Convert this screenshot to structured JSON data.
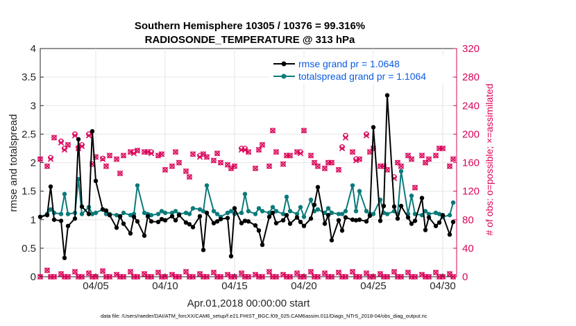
{
  "chart_data": {
    "type": "line",
    "title_line1": "Southern Hemisphere 10305 / 10376 = 99.316%",
    "title_line2": "RADIOSONDE_TEMPERATURE @ 313 hPa",
    "xlabel": "Apr.01,2018 00:00:00 start",
    "ylabel": "rmse and totalspread",
    "y2label": "# of obs: o=possible; ×=assimilated",
    "footnote": "data file: /Users/raeder/DAI/ATM_forcXX/CAM6_setup/f.e21.FHIST_BGC.f09_025.CAM6assim.011/Diags_NTrS_2018-04/obs_diag_output.nc",
    "x_ticks": [
      "04/05",
      "04/10",
      "04/15",
      "04/20",
      "04/25",
      "04/30"
    ],
    "x_tick_days": [
      5,
      10,
      15,
      20,
      25,
      30
    ],
    "xlim": [
      1,
      31
    ],
    "ylim": [
      0,
      4
    ],
    "y_ticks": [
      "0",
      "0.5",
      "1",
      "1.5",
      "2",
      "2.5",
      "3",
      "3.5",
      "4"
    ],
    "y2lim": [
      0,
      320
    ],
    "y2_ticks": [
      "0",
      "40",
      "80",
      "120",
      "160",
      "200",
      "240",
      "280",
      "320"
    ],
    "legend_position": "top-right",
    "colors": {
      "rmse": "#000000",
      "spread": "#0a7a7a",
      "obs": "#d9065a"
    },
    "x": [
      1.0,
      1.5,
      1.75,
      2.0,
      2.5,
      2.75,
      3.0,
      3.5,
      3.75,
      4.0,
      4.5,
      4.75,
      5.0,
      5.5,
      5.75,
      6.0,
      6.5,
      6.75,
      7.0,
      7.5,
      7.75,
      8.0,
      8.5,
      8.75,
      9.0,
      9.5,
      9.75,
      10.0,
      10.5,
      10.75,
      11.0,
      11.5,
      11.75,
      12.0,
      12.5,
      12.75,
      13.0,
      13.5,
      13.75,
      14.0,
      14.5,
      14.75,
      15.0,
      15.5,
      15.75,
      16.0,
      16.5,
      16.75,
      17.0,
      17.5,
      17.75,
      18.0,
      18.5,
      18.75,
      19.0,
      19.5,
      19.75,
      20.0,
      20.5,
      20.75,
      21.0,
      21.5,
      21.75,
      22.0,
      22.5,
      22.75,
      23.0,
      23.5,
      23.75,
      24.0,
      24.5,
      24.75,
      25.0,
      25.5,
      25.75,
      26.0,
      26.5,
      26.75,
      27.0,
      27.5,
      27.75,
      28.0,
      28.5,
      28.75,
      29.0,
      29.5,
      29.75,
      30.0,
      30.5,
      30.75
    ],
    "series": [
      {
        "name": "rmse grand pr = 1.0648",
        "values": [
          1.05,
          1.08,
          1.58,
          1.0,
          0.98,
          0.33,
          0.89,
          1.02,
          2.41,
          1.23,
          1.1,
          2.55,
          1.68,
          1.18,
          1.16,
          1.08,
          0.86,
          1.06,
          0.93,
          0.76,
          1.05,
          0.97,
          0.72,
          1.06,
          0.97,
          0.96,
          1.01,
          0.99,
          1.06,
          0.99,
          1.08,
          0.95,
          0.92,
          0.87,
          1.06,
          0.47,
          1.12,
          0.94,
          0.97,
          1.01,
          1.03,
          0.36,
          1.2,
          0.94,
          0.98,
          0.97,
          0.9,
          0.81,
          0.56,
          1.05,
          1.12,
          0.94,
          0.99,
          1.08,
          0.93,
          1.04,
          0.96,
          0.89,
          1.02,
          1.26,
          1.57,
          0.93,
          1.08,
          0.64,
          0.99,
          0.81,
          1.04,
          1.0,
          0.99,
          1.0,
          0.97,
          1.07,
          2.62,
          0.98,
          1.24,
          3.18,
          1.23,
          1.02,
          1.24,
          1.04,
          0.93,
          0.98,
          1.38,
          0.82,
          1.04,
          0.89,
          0.95,
          1.08,
          0.74,
          0.96
        ]
      },
      {
        "name": "totalspread grand pr = 1.1064",
        "values": [
          1.05,
          1.1,
          1.18,
          1.12,
          1.1,
          1.45,
          1.1,
          1.12,
          1.71,
          1.1,
          1.22,
          1.1,
          1.12,
          1.18,
          1.1,
          1.1,
          1.08,
          1.05,
          1.12,
          1.08,
          1.1,
          1.6,
          1.12,
          1.1,
          1.08,
          1.1,
          1.15,
          1.12,
          1.12,
          1.15,
          1.1,
          1.12,
          1.1,
          1.2,
          1.18,
          1.15,
          1.6,
          1.15,
          1.1,
          1.05,
          1.12,
          1.15,
          1.1,
          1.12,
          1.45,
          1.15,
          1.1,
          1.2,
          1.15,
          1.12,
          1.22,
          1.15,
          1.1,
          1.4,
          1.15,
          1.1,
          1.22,
          1.05,
          1.35,
          1.15,
          1.18,
          1.12,
          1.2,
          1.12,
          1.1,
          1.1,
          1.15,
          1.6,
          1.15,
          1.5,
          1.15,
          1.1,
          1.1,
          1.35,
          1.12,
          1.1,
          1.15,
          1.1,
          1.85,
          1.1,
          1.42,
          1.1,
          1.08,
          1.15,
          1.1,
          1.12,
          1.1,
          1.05,
          1.08,
          1.3
        ]
      }
    ],
    "obs_possible": [
      165,
      155,
      167,
      195,
      190,
      180,
      185,
      200,
      181,
      185,
      200,
      158,
      168,
      166,
      155,
      170,
      165,
      145,
      170,
      175,
      175,
      177,
      175,
      175,
      175,
      170,
      172,
      150,
      155,
      175,
      160,
      148,
      140,
      172,
      170,
      172,
      168,
      163,
      173,
      160,
      157,
      152,
      155,
      180,
      180,
      175,
      152,
      178,
      185,
      155,
      205,
      175,
      158,
      170,
      170,
      175,
      175,
      205,
      170,
      160,
      155,
      152,
      160,
      160,
      150,
      182,
      198,
      175,
      165,
      165,
      200,
      175,
      180,
      155,
      155,
      150,
      140,
      160,
      155,
      170,
      165,
      125,
      170,
      160,
      165,
      170,
      180,
      180,
      155,
      165
    ],
    "obs_assimilated": [
      165,
      155,
      165,
      195,
      188,
      178,
      185,
      198,
      180,
      183,
      198,
      158,
      168,
      165,
      155,
      170,
      165,
      145,
      170,
      175,
      173,
      177,
      175,
      175,
      173,
      170,
      172,
      150,
      155,
      175,
      160,
      148,
      140,
      172,
      168,
      172,
      168,
      163,
      173,
      160,
      157,
      152,
      155,
      178,
      178,
      175,
      152,
      178,
      185,
      155,
      205,
      175,
      158,
      170,
      170,
      175,
      173,
      205,
      170,
      160,
      155,
      152,
      160,
      160,
      150,
      180,
      195,
      175,
      163,
      165,
      198,
      175,
      180,
      155,
      155,
      150,
      138,
      160,
      155,
      170,
      165,
      125,
      170,
      160,
      165,
      170,
      180,
      180,
      155,
      165
    ],
    "low_obs_x": [
      1.0,
      1.5,
      1.75,
      2.0,
      2.5,
      2.75,
      3.0,
      3.5,
      3.75,
      4.0,
      4.5,
      4.75,
      5.0,
      5.5,
      5.75,
      6.0,
      6.5,
      6.75,
      7.0,
      7.5,
      7.75,
      8.0,
      8.5,
      8.75,
      9.0,
      9.5,
      9.75,
      10.0,
      10.5,
      10.75,
      11.0,
      11.5,
      11.75,
      12.0,
      12.5,
      12.75,
      13.0,
      13.5,
      13.75,
      14.0,
      14.5,
      14.75,
      15.0,
      15.5,
      15.75,
      16.0,
      16.5,
      16.75,
      17.0,
      17.5,
      17.75,
      18.0,
      18.5,
      18.75,
      19.0,
      19.5,
      19.75,
      20.0,
      20.5,
      20.75,
      21.0,
      21.5,
      21.75,
      22.0,
      22.5,
      22.75,
      23.0,
      23.5,
      23.75,
      24.0,
      24.5,
      24.75,
      25.0,
      25.5,
      25.75,
      26.0,
      26.5,
      26.75,
      27.0,
      27.5,
      27.75,
      28.0,
      28.5,
      28.75,
      29.0,
      29.5,
      29.75,
      30.0,
      30.5,
      30.75
    ],
    "low_obs_possible": [
      0,
      9,
      0,
      0,
      4,
      0,
      0,
      7,
      0,
      0,
      5,
      0,
      0,
      8,
      0,
      0,
      3,
      0,
      0,
      7,
      0,
      0,
      4,
      0,
      0,
      6,
      0,
      0,
      3,
      0,
      0,
      7,
      0,
      0,
      4,
      0,
      0,
      6,
      0,
      0,
      3,
      0,
      0,
      5,
      0,
      0,
      3,
      0,
      0,
      7,
      0,
      0,
      3,
      0,
      0,
      5,
      0,
      0,
      7,
      0,
      0,
      5,
      0,
      0,
      6,
      0,
      0,
      7,
      0,
      0,
      5,
      0,
      0,
      4,
      0,
      0,
      7,
      0,
      0,
      6,
      0,
      0,
      3,
      0,
      0,
      6,
      0,
      0,
      4,
      0
    ],
    "low_obs_assimilated": [
      0,
      9,
      0,
      0,
      4,
      0,
      0,
      7,
      0,
      0,
      5,
      0,
      0,
      8,
      0,
      0,
      3,
      0,
      0,
      7,
      0,
      0,
      4,
      0,
      0,
      6,
      0,
      0,
      3,
      0,
      0,
      7,
      0,
      0,
      4,
      0,
      0,
      6,
      0,
      0,
      3,
      0,
      0,
      5,
      0,
      0,
      3,
      0,
      0,
      7,
      0,
      0,
      3,
      0,
      0,
      5,
      0,
      0,
      7,
      0,
      0,
      5,
      0,
      0,
      6,
      0,
      0,
      7,
      0,
      0,
      5,
      0,
      0,
      4,
      0,
      0,
      7,
      0,
      0,
      6,
      0,
      0,
      3,
      0,
      0,
      6,
      0,
      0,
      4,
      0
    ]
  }
}
